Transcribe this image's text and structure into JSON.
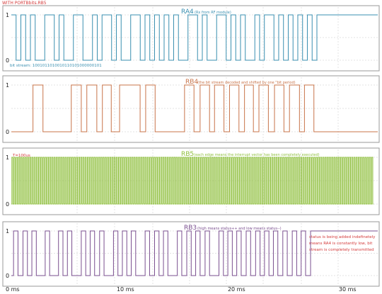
{
  "header": "WITH PORTBbits.RB5",
  "chart_data": {
    "type": "line",
    "x_unit": "ms",
    "xlim": [
      0,
      33
    ],
    "xticks": [
      0,
      10,
      20,
      30
    ],
    "xtick_labels": [
      "0 ms",
      "10 ms",
      "20 ms",
      "30 ms"
    ],
    "ylim": [
      0,
      1
    ],
    "panels": [
      {
        "title": "RA4",
        "title_note": "(Rx from RF module)",
        "color": "#3a8fb0",
        "ytick_labels": [
          "1",
          "0"
        ],
        "annotations": [
          "bit stream: 1001011010010110101000000101"
        ],
        "series": [
          {
            "step_x": [
              0.0,
              0.43,
              0.86,
              1.29,
              1.72,
              2.15,
              2.58,
              3.01,
              3.44,
              3.87,
              4.3,
              4.73,
              5.16,
              5.59,
              6.02,
              6.45,
              6.88,
              7.31,
              7.74,
              8.17,
              8.6,
              9.03,
              9.46,
              9.89,
              10.32,
              10.75,
              11.18,
              11.61,
              12.04,
              12.47,
              12.9,
              13.33,
              13.76,
              14.19,
              14.62,
              15.05,
              15.48,
              15.91,
              16.34,
              16.77,
              17.2,
              17.63,
              18.06,
              18.49,
              18.92,
              19.35,
              19.78,
              20.21,
              20.64,
              21.07,
              21.5,
              21.93,
              22.36,
              22.79,
              23.22,
              23.65,
              24.08,
              24.51,
              24.94,
              25.37,
              25.8,
              26.23,
              26.66,
              27.09,
              27.52,
              33.0
            ],
            "step_y": [
              1,
              0,
              1,
              0,
              1,
              0,
              0,
              1,
              1,
              0,
              1,
              0,
              0,
              1,
              1,
              0,
              0,
              1,
              0,
              1,
              1,
              0,
              1,
              0,
              0,
              1,
              1,
              0,
              1,
              0,
              1,
              0,
              1,
              0,
              1,
              0,
              0,
              1,
              1,
              0,
              1,
              0,
              0,
              1,
              1,
              0,
              1,
              0,
              1,
              0,
              0,
              1,
              0,
              1,
              1,
              0,
              1,
              0,
              1,
              0,
              1,
              0,
              1,
              0,
              1,
              1
            ]
          }
        ]
      },
      {
        "title": "RB4",
        "title_note": "(the bit stream decoded and shifted by one \"bit period)",
        "color": "#c8744a",
        "ytick_labels": [
          "1",
          "0"
        ],
        "annotations": [],
        "series": [
          {
            "step_x": [
              0.0,
              1.95,
              2.85,
              5.4,
              6.3,
              6.8,
              7.7,
              8.2,
              9.0,
              9.75,
              11.6,
              12.1,
              12.95,
              15.6,
              16.45,
              17.0,
              17.85,
              18.3,
              19.15,
              19.65,
              20.5,
              21.0,
              21.8,
              22.3,
              23.15,
              23.7,
              24.55,
              25.05,
              25.95,
              26.4,
              27.25,
              33.0
            ],
            "step_y": [
              0,
              1,
              0,
              1,
              0,
              1,
              0,
              1,
              0,
              1,
              0,
              1,
              0,
              1,
              0,
              1,
              0,
              1,
              0,
              1,
              0,
              1,
              0,
              1,
              0,
              1,
              0,
              1,
              0,
              1,
              0,
              0
            ]
          }
        ]
      },
      {
        "title": "RB5",
        "title_note": "(each edge means the interrupt vector has been completely executed)",
        "color": "#8fbf3d",
        "ytick_labels": [
          "1",
          "0"
        ],
        "annotations": [
          "T=100us"
        ],
        "series": [
          {
            "toggle_period_ms": 0.1,
            "start_ms": 0.05,
            "end_ms": 32.6
          }
        ]
      },
      {
        "title": "RB3",
        "title_note": "(high means status++ and low means status--)",
        "color": "#7a4f8f",
        "ytick_labels": [
          "1",
          "0"
        ],
        "annotations": [
          "status is being added indefinetely",
          "means RA4 is constantly low, bit",
          "stream is completely transmitted"
        ],
        "series": [
          {
            "step_x": [
              0.0,
              0.2,
              0.6,
              1.05,
              1.45,
              1.85,
              2.25,
              3.05,
              3.45,
              4.25,
              4.65,
              5.05,
              5.45,
              6.3,
              6.7,
              7.1,
              7.5,
              7.95,
              8.35,
              9.2,
              9.6,
              10.0,
              10.4,
              10.8,
              11.2,
              12.05,
              12.45,
              12.9,
              13.3,
              13.7,
              14.1,
              14.95,
              15.35,
              15.8,
              16.2,
              16.6,
              17.0,
              17.45,
              17.85,
              18.7,
              19.1,
              19.5,
              19.9,
              20.3,
              20.7,
              21.15,
              21.55,
              22.0,
              22.4,
              22.8,
              23.2,
              23.6,
              24.0,
              24.45,
              24.85,
              25.3,
              25.7,
              26.1,
              26.5,
              26.95,
              27.35,
              33.0
            ],
            "step_y": [
              0,
              1,
              0,
              1,
              0,
              1,
              0,
              1,
              0,
              1,
              0,
              1,
              0,
              1,
              0,
              1,
              0,
              1,
              0,
              1,
              0,
              1,
              0,
              1,
              0,
              1,
              0,
              1,
              0,
              1,
              0,
              1,
              0,
              1,
              0,
              1,
              0,
              1,
              0,
              1,
              0,
              1,
              0,
              1,
              0,
              1,
              0,
              1,
              0,
              1,
              0,
              1,
              0,
              1,
              0,
              1,
              0,
              1,
              0,
              1,
              1,
              1
            ]
          }
        ]
      }
    ]
  }
}
